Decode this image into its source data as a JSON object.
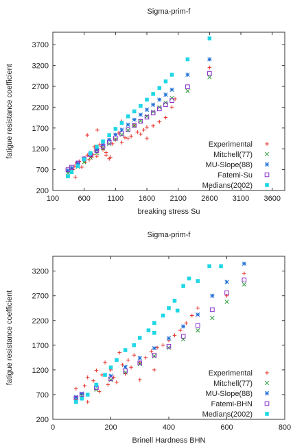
{
  "chart_data": [
    {
      "type": "scatter",
      "title": "Sigma-prim-f",
      "xlabel": "breaking stress Su",
      "ylabel": "fatigue resistance coefficient",
      "xlim": [
        100,
        3800
      ],
      "ylim": [
        200,
        4000
      ],
      "xticks": [
        "100",
        "600",
        "1100",
        "1600",
        "2100",
        "2600",
        "3100",
        "3600"
      ],
      "yticks": [
        "200",
        "700",
        "1200",
        "1700",
        "2200",
        "2700",
        "3200",
        "3700"
      ],
      "legend": "bottom-right",
      "series": [
        {
          "name": "Experimental",
          "marker": "plus",
          "color": "#e8312a",
          "points": [
            [
              340,
              540
            ],
            [
              380,
              640
            ],
            [
              420,
              700
            ],
            [
              450,
              780
            ],
            [
              460,
              520
            ],
            [
              480,
              860
            ],
            [
              520,
              900
            ],
            [
              560,
              760
            ],
            [
              600,
              980
            ],
            [
              620,
              880
            ],
            [
              650,
              1050
            ],
            [
              680,
              940
            ],
            [
              700,
              1100
            ],
            [
              720,
              1000
            ],
            [
              740,
              1060
            ],
            [
              760,
              1250
            ],
            [
              780,
              1150
            ],
            [
              800,
              1020
            ],
            [
              820,
              1200
            ],
            [
              850,
              1300
            ],
            [
              880,
              1260
            ],
            [
              900,
              1180
            ],
            [
              950,
              1050
            ],
            [
              1000,
              960
            ],
            [
              1020,
              1000
            ],
            [
              1050,
              1320
            ],
            [
              1100,
              1420
            ],
            [
              1150,
              1580
            ],
            [
              1200,
              1350
            ],
            [
              1250,
              1470
            ],
            [
              1300,
              1450
            ],
            [
              1350,
              1500
            ],
            [
              1450,
              1600
            ],
            [
              1500,
              1550
            ],
            [
              1550,
              1650
            ],
            [
              1600,
              1720
            ],
            [
              1700,
              1750
            ],
            [
              1800,
              1850
            ],
            [
              1900,
              1950
            ],
            [
              2000,
              2200
            ],
            [
              2050,
              2400
            ],
            [
              2600,
              3150
            ],
            [
              650,
              1530
            ],
            [
              810,
              1650
            ],
            [
              1200,
              1860
            ],
            [
              1600,
              1450
            ],
            [
              1400,
              1760
            ],
            [
              950,
              1110
            ]
          ]
        },
        {
          "name": "Mitchell(77)",
          "marker": "x",
          "color": "#2a9a38",
          "points": [
            [
              340,
              620
            ],
            [
              400,
              660
            ],
            [
              500,
              770
            ],
            [
              600,
              880
            ],
            [
              700,
              990
            ],
            [
              800,
              1100
            ],
            [
              900,
              1210
            ],
            [
              1000,
              1320
            ],
            [
              1100,
              1430
            ],
            [
              1200,
              1540
            ],
            [
              1300,
              1650
            ],
            [
              1400,
              1760
            ],
            [
              1500,
              1870
            ],
            [
              1600,
              1980
            ],
            [
              1700,
              2090
            ],
            [
              1800,
              2200
            ],
            [
              1900,
              2310
            ],
            [
              2000,
              2420
            ],
            [
              2250,
              2590
            ],
            [
              2600,
              2920
            ]
          ]
        },
        {
          "name": "MU-Slope(88)",
          "marker": "star",
          "color": "#1f6fd8",
          "points": [
            [
              340,
              680
            ],
            [
              400,
              740
            ],
            [
              500,
              850
            ],
            [
              600,
              960
            ],
            [
              700,
              1070
            ],
            [
              800,
              1180
            ],
            [
              900,
              1300
            ],
            [
              1000,
              1420
            ],
            [
              1100,
              1540
            ],
            [
              1200,
              1660
            ],
            [
              1300,
              1780
            ],
            [
              1400,
              1900
            ],
            [
              1500,
              2020
            ],
            [
              1600,
              2140
            ],
            [
              1700,
              2260
            ],
            [
              1800,
              2380
            ],
            [
              1900,
              2500
            ],
            [
              2000,
              2620
            ],
            [
              2250,
              2980
            ],
            [
              2600,
              3350
            ]
          ]
        },
        {
          "name": "Fatemi-Su",
          "marker": "square-open",
          "color": "#8a2cc7",
          "points": [
            [
              340,
              700
            ],
            [
              400,
              760
            ],
            [
              500,
              860
            ],
            [
              600,
              960
            ],
            [
              700,
              1060
            ],
            [
              800,
              1160
            ],
            [
              900,
              1260
            ],
            [
              1000,
              1360
            ],
            [
              1100,
              1460
            ],
            [
              1200,
              1560
            ],
            [
              1300,
              1660
            ],
            [
              1400,
              1760
            ],
            [
              1500,
              1860
            ],
            [
              1600,
              1960
            ],
            [
              1700,
              2060
            ],
            [
              1800,
              2160
            ],
            [
              1900,
              2260
            ],
            [
              2000,
              2360
            ],
            [
              2250,
              2690
            ],
            [
              2600,
              3010
            ]
          ]
        },
        {
          "name": "Medians(2002)",
          "marker": "square-filled",
          "color": "#1fd7e6",
          "points": [
            [
              340,
              540
            ],
            [
              400,
              640
            ],
            [
              500,
              790
            ],
            [
              600,
              950
            ],
            [
              700,
              1100
            ],
            [
              800,
              1250
            ],
            [
              900,
              1380
            ],
            [
              1000,
              1530
            ],
            [
              1100,
              1680
            ],
            [
              1200,
              1820
            ],
            [
              1300,
              1980
            ],
            [
              1400,
              2100
            ],
            [
              1500,
              2230
            ],
            [
              1600,
              2380
            ],
            [
              1700,
              2520
            ],
            [
              1800,
              2660
            ],
            [
              1900,
              2820
            ],
            [
              2000,
              2980
            ],
            [
              2250,
              3350
            ],
            [
              2600,
              3850
            ]
          ]
        }
      ]
    },
    {
      "type": "scatter",
      "title": "Sigma-prim-f",
      "xlabel": "Brinell Hardness BHN",
      "ylabel": "fatigue resistance coefficient",
      "xlim": [
        0,
        800
      ],
      "ylim": [
        200,
        3500
      ],
      "xticks": [
        "0",
        "200",
        "400",
        "600",
        "800"
      ],
      "yticks": [
        "200",
        "700",
        "1200",
        "1700",
        "2200",
        "2700",
        "3200"
      ],
      "legend": "bottom-right",
      "series": [
        {
          "name": "Experimental",
          "marker": "plus",
          "color": "#e8312a",
          "points": [
            [
              80,
              820
            ],
            [
              100,
              700
            ],
            [
              110,
              880
            ],
            [
              120,
              550
            ],
            [
              140,
              980
            ],
            [
              160,
              760
            ],
            [
              170,
              1100
            ],
            [
              180,
              1350
            ],
            [
              190,
              900
            ],
            [
              200,
              1200
            ],
            [
              210,
              1050
            ],
            [
              220,
              950
            ],
            [
              240,
              1300
            ],
            [
              250,
              1120
            ],
            [
              260,
              1400
            ],
            [
              270,
              1250
            ],
            [
              280,
              1500
            ],
            [
              300,
              1350
            ],
            [
              320,
              1450
            ],
            [
              340,
              1580
            ],
            [
              360,
              1650
            ],
            [
              380,
              1700
            ],
            [
              400,
              1800
            ],
            [
              420,
              1900
            ],
            [
              440,
              2000
            ],
            [
              460,
              2150
            ],
            [
              480,
              2300
            ],
            [
              500,
              2450
            ],
            [
              600,
              2700
            ],
            [
              660,
              3150
            ],
            [
              120,
              1050
            ],
            [
              150,
              1190
            ],
            [
              230,
              1550
            ],
            [
              300,
              1000
            ],
            [
              350,
              1200
            ]
          ]
        },
        {
          "name": "Mitchell(77)",
          "marker": "x",
          "color": "#2a9a38",
          "points": [
            [
              80,
              600
            ],
            [
              100,
              680
            ],
            [
              150,
              800
            ],
            [
              200,
              1000
            ],
            [
              250,
              1150
            ],
            [
              300,
              1320
            ],
            [
              350,
              1480
            ],
            [
              400,
              1650
            ],
            [
              450,
              1820
            ],
            [
              500,
              2000
            ],
            [
              550,
              2250
            ],
            [
              600,
              2580
            ],
            [
              660,
              2930
            ]
          ]
        },
        {
          "name": "MU-Slope(88)",
          "marker": "star",
          "color": "#1f6fd8",
          "points": [
            [
              80,
              650
            ],
            [
              100,
              720
            ],
            [
              150,
              880
            ],
            [
              200,
              1080
            ],
            [
              250,
              1260
            ],
            [
              300,
              1440
            ],
            [
              350,
              1640
            ],
            [
              400,
              1840
            ],
            [
              450,
              2080
            ],
            [
              500,
              2320
            ],
            [
              550,
              2700
            ],
            [
              600,
              2980
            ],
            [
              660,
              3350
            ]
          ]
        },
        {
          "name": "Fatemi-BHN",
          "marker": "square-open",
          "color": "#8a2cc7",
          "points": [
            [
              80,
              630
            ],
            [
              100,
              700
            ],
            [
              150,
              840
            ],
            [
              200,
              1020
            ],
            [
              250,
              1180
            ],
            [
              300,
              1340
            ],
            [
              350,
              1500
            ],
            [
              400,
              1680
            ],
            [
              450,
              1880
            ],
            [
              500,
              2100
            ],
            [
              550,
              2420
            ],
            [
              600,
              2760
            ],
            [
              660,
              3020
            ]
          ]
        },
        {
          "name": "Medians(2002)",
          "marker": "square-filled",
          "color": "#1fd7e6",
          "points": [
            [
              80,
              550
            ],
            [
              100,
              620
            ],
            [
              120,
              700
            ],
            [
              150,
              900
            ],
            [
              180,
              1100
            ],
            [
              200,
              1250
            ],
            [
              220,
              1400
            ],
            [
              250,
              1600
            ],
            [
              280,
              1700
            ],
            [
              300,
              1850
            ],
            [
              330,
              2000
            ],
            [
              350,
              2150
            ],
            [
              380,
              2300
            ],
            [
              400,
              2450
            ],
            [
              420,
              2600
            ],
            [
              450,
              2900
            ],
            [
              470,
              3050
            ],
            [
              500,
              3000
            ],
            [
              540,
              3300
            ],
            [
              580,
              3300
            ],
            [
              430,
              2400
            ],
            [
              350,
              1950
            ]
          ]
        }
      ]
    }
  ]
}
